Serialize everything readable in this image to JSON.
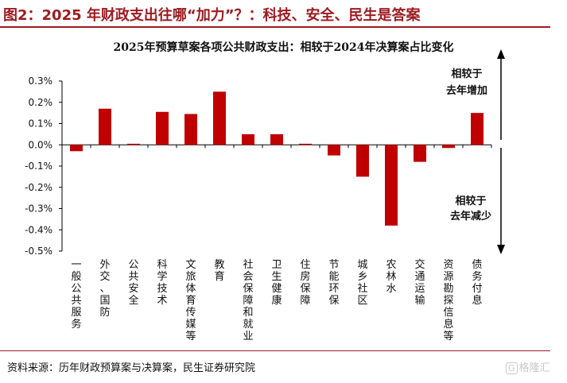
{
  "header": {
    "title": "图2：2025 年财政支出往哪“加力”？：科技、安全、民生是答案"
  },
  "chart_data": {
    "type": "bar",
    "title": "2025年预算草案各项公共财政支出：相较于2024年决算案占比变化",
    "categories": [
      "一般公共服务",
      "外交、国防",
      "公共安全",
      "科学技术",
      "文旅体育传媒等",
      "教育",
      "社会保障和就业",
      "卫生健康",
      "住房保障",
      "节能环保",
      "城乡社区",
      "农林水",
      "交通运输",
      "资源勘探信息等",
      "债务付息"
    ],
    "values": [
      -0.03,
      0.17,
      0.005,
      0.155,
      0.145,
      0.25,
      0.05,
      0.05,
      0.005,
      -0.05,
      -0.15,
      -0.38,
      -0.08,
      -0.015,
      0.15
    ],
    "unit": "%",
    "yticks": [
      0.3,
      0.2,
      0.1,
      0.0,
      -0.1,
      -0.2,
      -0.3,
      -0.4,
      -0.5
    ],
    "ytick_labels": [
      "0.3%",
      "0.2%",
      "0.1%",
      "0.0%",
      "-0.1%",
      "-0.2%",
      "-0.3%",
      "-0.4%",
      "-0.5%"
    ],
    "ylim": [
      -0.5,
      0.3
    ],
    "grid": false,
    "bar_color": "#c00000",
    "annotations": {
      "increase": [
        "相较于",
        "去年增加"
      ],
      "decrease": [
        "相较于",
        "去年减少"
      ]
    }
  },
  "footer": {
    "source": "资料来源：历年财政预算案与决算案，民生证券研究院",
    "watermark": "格隆汇"
  }
}
